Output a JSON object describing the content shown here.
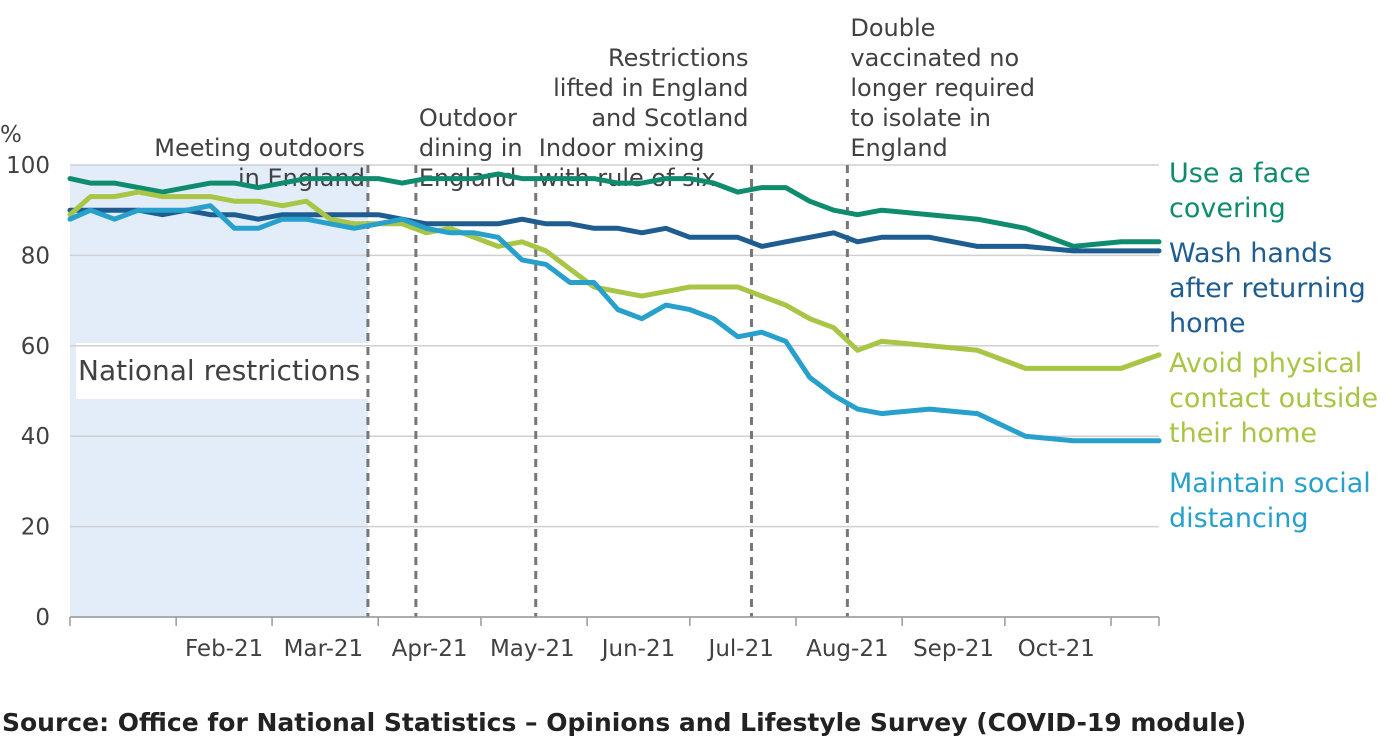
{
  "chart_data": {
    "type": "line",
    "ylabel": "%",
    "ylim": [
      0,
      100
    ],
    "yticks": [
      "0",
      "20",
      "40",
      "60",
      "80",
      "100"
    ],
    "xticks": [
      "Feb-21",
      "Mar-21",
      "Apr-21",
      "May-21",
      "Jun-21",
      "Jul-21",
      "Aug-21",
      "Sep-21",
      "Oct-21"
    ],
    "x_start": "2021-01-01",
    "x_end": "2021-11-15",
    "grid": "horizontal",
    "shaded_region": {
      "label": "National restrictions",
      "from": "2021-01-01",
      "to": "2021-03-29",
      "color": "#e3edf9"
    },
    "events": [
      {
        "date": "2021-03-29",
        "label": [
          "Meeting outdoors",
          "in England"
        ],
        "align": "end",
        "rank": 1
      },
      {
        "date": "2021-04-12",
        "label": [
          "Outdoor",
          "dining in",
          "England"
        ],
        "align": "start",
        "rank": 2
      },
      {
        "date": "2021-05-17",
        "label": [
          "Indoor mixing",
          "with rule of six"
        ],
        "align": "start",
        "rank": 1
      },
      {
        "date": "2021-07-19",
        "label": [
          "Restrictions",
          "lifted in England",
          "and Scotland"
        ],
        "align": "end",
        "rank": 4
      },
      {
        "date": "2021-08-16",
        "label": [
          "Double",
          "vaccinated no",
          "longer required",
          "to isolate in",
          "England"
        ],
        "align": "start",
        "rank": 5
      }
    ],
    "series": [
      {
        "name": "Use a face covering",
        "label_lines": [
          "Use a face",
          "covering"
        ],
        "color": "#0f8c6e",
        "points": [
          [
            "2021-01-01",
            97
          ],
          [
            "2021-01-07",
            96
          ],
          [
            "2021-01-14",
            96
          ],
          [
            "2021-01-21",
            95
          ],
          [
            "2021-01-28",
            94
          ],
          [
            "2021-02-04",
            95
          ],
          [
            "2021-02-11",
            96
          ],
          [
            "2021-02-18",
            96
          ],
          [
            "2021-02-25",
            95
          ],
          [
            "2021-03-04",
            96
          ],
          [
            "2021-03-11",
            97
          ],
          [
            "2021-03-18",
            97
          ],
          [
            "2021-03-25",
            97
          ],
          [
            "2021-04-01",
            97
          ],
          [
            "2021-04-08",
            96
          ],
          [
            "2021-04-15",
            97
          ],
          [
            "2021-04-22",
            97
          ],
          [
            "2021-04-29",
            97
          ],
          [
            "2021-05-06",
            98
          ],
          [
            "2021-05-13",
            97
          ],
          [
            "2021-05-20",
            97
          ],
          [
            "2021-05-27",
            97
          ],
          [
            "2021-06-03",
            97
          ],
          [
            "2021-06-10",
            96
          ],
          [
            "2021-06-17",
            96
          ],
          [
            "2021-06-24",
            97
          ],
          [
            "2021-07-01",
            97
          ],
          [
            "2021-07-08",
            96
          ],
          [
            "2021-07-15",
            94
          ],
          [
            "2021-07-22",
            95
          ],
          [
            "2021-07-29",
            95
          ],
          [
            "2021-08-05",
            92
          ],
          [
            "2021-08-12",
            90
          ],
          [
            "2021-08-19",
            89
          ],
          [
            "2021-08-26",
            90
          ],
          [
            "2021-09-09",
            89
          ],
          [
            "2021-09-23",
            88
          ],
          [
            "2021-10-07",
            86
          ],
          [
            "2021-10-21",
            82
          ],
          [
            "2021-11-04",
            83
          ],
          [
            "2021-11-15",
            83
          ]
        ]
      },
      {
        "name": "Wash hands after returning home",
        "label_lines": [
          "Wash hands",
          "after returning",
          "home"
        ],
        "color": "#1f5d91",
        "points": [
          [
            "2021-01-01",
            90
          ],
          [
            "2021-01-07",
            90
          ],
          [
            "2021-01-14",
            90
          ],
          [
            "2021-01-21",
            90
          ],
          [
            "2021-01-28",
            89
          ],
          [
            "2021-02-04",
            90
          ],
          [
            "2021-02-11",
            89
          ],
          [
            "2021-02-18",
            89
          ],
          [
            "2021-02-25",
            88
          ],
          [
            "2021-03-04",
            89
          ],
          [
            "2021-03-11",
            89
          ],
          [
            "2021-03-18",
            89
          ],
          [
            "2021-03-25",
            89
          ],
          [
            "2021-04-01",
            89
          ],
          [
            "2021-04-08",
            88
          ],
          [
            "2021-04-15",
            87
          ],
          [
            "2021-04-22",
            87
          ],
          [
            "2021-04-29",
            87
          ],
          [
            "2021-05-06",
            87
          ],
          [
            "2021-05-13",
            88
          ],
          [
            "2021-05-20",
            87
          ],
          [
            "2021-05-27",
            87
          ],
          [
            "2021-06-03",
            86
          ],
          [
            "2021-06-10",
            86
          ],
          [
            "2021-06-17",
            85
          ],
          [
            "2021-06-24",
            86
          ],
          [
            "2021-07-01",
            84
          ],
          [
            "2021-07-08",
            84
          ],
          [
            "2021-07-15",
            84
          ],
          [
            "2021-07-22",
            82
          ],
          [
            "2021-07-29",
            83
          ],
          [
            "2021-08-05",
            84
          ],
          [
            "2021-08-12",
            85
          ],
          [
            "2021-08-19",
            83
          ],
          [
            "2021-08-26",
            84
          ],
          [
            "2021-09-09",
            84
          ],
          [
            "2021-09-23",
            82
          ],
          [
            "2021-10-07",
            82
          ],
          [
            "2021-10-21",
            81
          ],
          [
            "2021-11-04",
            81
          ],
          [
            "2021-11-15",
            81
          ]
        ]
      },
      {
        "name": "Avoid physical contact outside their home",
        "label_lines": [
          "Avoid physical",
          "contact outside",
          "their home"
        ],
        "color": "#a8c545",
        "points": [
          [
            "2021-01-01",
            89
          ],
          [
            "2021-01-07",
            93
          ],
          [
            "2021-01-14",
            93
          ],
          [
            "2021-01-21",
            94
          ],
          [
            "2021-01-28",
            93
          ],
          [
            "2021-02-04",
            93
          ],
          [
            "2021-02-11",
            93
          ],
          [
            "2021-02-18",
            92
          ],
          [
            "2021-02-25",
            92
          ],
          [
            "2021-03-04",
            91
          ],
          [
            "2021-03-11",
            92
          ],
          [
            "2021-03-18",
            88
          ],
          [
            "2021-03-25",
            87
          ],
          [
            "2021-04-01",
            87
          ],
          [
            "2021-04-08",
            87
          ],
          [
            "2021-04-15",
            85
          ],
          [
            "2021-04-22",
            86
          ],
          [
            "2021-04-29",
            84
          ],
          [
            "2021-05-06",
            82
          ],
          [
            "2021-05-13",
            83
          ],
          [
            "2021-05-20",
            81
          ],
          [
            "2021-05-27",
            77
          ],
          [
            "2021-06-03",
            73
          ],
          [
            "2021-06-10",
            72
          ],
          [
            "2021-06-17",
            71
          ],
          [
            "2021-06-24",
            72
          ],
          [
            "2021-07-01",
            73
          ],
          [
            "2021-07-08",
            73
          ],
          [
            "2021-07-15",
            73
          ],
          [
            "2021-07-22",
            71
          ],
          [
            "2021-07-29",
            69
          ],
          [
            "2021-08-05",
            66
          ],
          [
            "2021-08-12",
            64
          ],
          [
            "2021-08-19",
            59
          ],
          [
            "2021-08-26",
            61
          ],
          [
            "2021-09-09",
            60
          ],
          [
            "2021-09-23",
            59
          ],
          [
            "2021-10-07",
            55
          ],
          [
            "2021-10-21",
            55
          ],
          [
            "2021-11-04",
            55
          ],
          [
            "2021-11-15",
            58
          ]
        ]
      },
      {
        "name": "Maintain social distancing",
        "label_lines": [
          "Maintain social",
          "distancing"
        ],
        "color": "#27a0cc",
        "points": [
          [
            "2021-01-01",
            88
          ],
          [
            "2021-01-07",
            90
          ],
          [
            "2021-01-14",
            88
          ],
          [
            "2021-01-21",
            90
          ],
          [
            "2021-01-28",
            90
          ],
          [
            "2021-02-04",
            90
          ],
          [
            "2021-02-11",
            91
          ],
          [
            "2021-02-18",
            86
          ],
          [
            "2021-02-25",
            86
          ],
          [
            "2021-03-04",
            88
          ],
          [
            "2021-03-11",
            88
          ],
          [
            "2021-03-18",
            87
          ],
          [
            "2021-03-25",
            86
          ],
          [
            "2021-04-01",
            87
          ],
          [
            "2021-04-08",
            88
          ],
          [
            "2021-04-15",
            86
          ],
          [
            "2021-04-22",
            85
          ],
          [
            "2021-04-29",
            85
          ],
          [
            "2021-05-06",
            84
          ],
          [
            "2021-05-13",
            79
          ],
          [
            "2021-05-20",
            78
          ],
          [
            "2021-05-27",
            74
          ],
          [
            "2021-06-03",
            74
          ],
          [
            "2021-06-10",
            68
          ],
          [
            "2021-06-17",
            66
          ],
          [
            "2021-06-24",
            69
          ],
          [
            "2021-07-01",
            68
          ],
          [
            "2021-07-08",
            66
          ],
          [
            "2021-07-15",
            62
          ],
          [
            "2021-07-22",
            63
          ],
          [
            "2021-07-29",
            61
          ],
          [
            "2021-08-05",
            53
          ],
          [
            "2021-08-12",
            49
          ],
          [
            "2021-08-19",
            46
          ],
          [
            "2021-08-26",
            45
          ],
          [
            "2021-09-09",
            46
          ],
          [
            "2021-09-23",
            45
          ],
          [
            "2021-10-07",
            40
          ],
          [
            "2021-10-21",
            39
          ],
          [
            "2021-11-04",
            39
          ],
          [
            "2021-11-15",
            39
          ]
        ]
      }
    ]
  },
  "source": "Source: Office for National Statistics – Opinions and Lifestyle Survey (COVID-19 module)"
}
